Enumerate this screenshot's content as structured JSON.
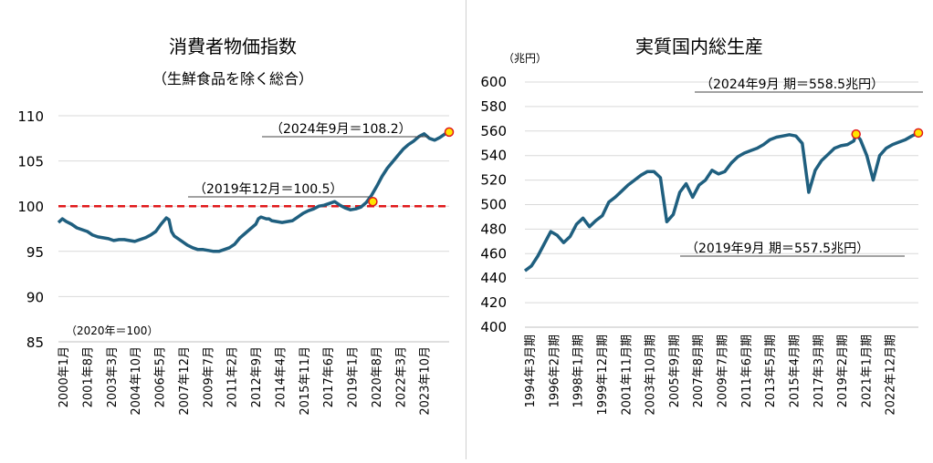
{
  "colors": {
    "line": "#1f5f7f",
    "reference_line": "#e0191b",
    "marker_fill": "#ffe600",
    "marker_stroke": "#e0191b"
  },
  "chart_data": [
    {
      "type": "line",
      "title": "消費者物価指数",
      "subtitle": "（生鮮食品を除く総合）",
      "unit_note": "（2020年＝100）",
      "ylim": [
        85,
        110
      ],
      "yticks": [
        "85",
        "90",
        "95",
        "100",
        "105",
        "110"
      ],
      "xticks": [
        "2000年1月",
        "2001年8月",
        "2003年3月",
        "2004年10月",
        "2006年5月",
        "2007年12月",
        "2009年7月",
        "2011年2月",
        "2012年9月",
        "2014年4月",
        "2015年11月",
        "2017年6月",
        "2019年1月",
        "2020年8月",
        "2022年3月",
        "2023年10月"
      ],
      "reference_line": 100,
      "annotations": [
        {
          "text": "（2024年9月＝108.2）",
          "x": 297,
          "y": 108.2
        },
        {
          "text": "（2019年12月＝100.5）",
          "x": 239,
          "y": 100.5
        }
      ],
      "series": [
        {
          "x": [
            0,
            3,
            6,
            10,
            14,
            18,
            22,
            26,
            30,
            34,
            38,
            42,
            46,
            50,
            54,
            58,
            62,
            66,
            70,
            74,
            78,
            82,
            84,
            86,
            88,
            90,
            92,
            94,
            98,
            102,
            106,
            110,
            114,
            118,
            122,
            126,
            130,
            134,
            138,
            142,
            146,
            150,
            152,
            154,
            156,
            158,
            160,
            162,
            166,
            170,
            174,
            178,
            182,
            186,
            190,
            194,
            198,
            202,
            206,
            210,
            214,
            218,
            222,
            226,
            230,
            234,
            238,
            242,
            246,
            250,
            254,
            258,
            262,
            266,
            270,
            274,
            278,
            282,
            286,
            290,
            294,
            297
          ],
          "values": [
            98.2,
            98.6,
            98.3,
            98.0,
            97.6,
            97.4,
            97.2,
            96.8,
            96.6,
            96.5,
            96.4,
            96.2,
            96.3,
            96.3,
            96.2,
            96.1,
            96.3,
            96.5,
            96.8,
            97.2,
            98.0,
            98.7,
            98.5,
            97.2,
            96.7,
            96.5,
            96.3,
            96.1,
            95.7,
            95.4,
            95.2,
            95.2,
            95.1,
            95.0,
            95.0,
            95.2,
            95.4,
            95.8,
            96.5,
            97.0,
            97.5,
            98.0,
            98.6,
            98.8,
            98.7,
            98.6,
            98.6,
            98.4,
            98.3,
            98.2,
            98.3,
            98.4,
            98.8,
            99.2,
            99.5,
            99.7,
            100.0,
            100.1,
            100.3,
            100.5,
            100.1,
            99.8,
            99.6,
            99.7,
            99.9,
            100.4,
            101.2,
            102.2,
            103.3,
            104.2,
            104.9,
            105.6,
            106.3,
            106.8,
            107.2,
            107.7,
            108.0,
            107.5,
            107.3,
            107.6,
            108.0,
            108.2
          ]
        }
      ]
    },
    {
      "type": "line",
      "title": "実質国内総生産",
      "unit_note": "（兆円）",
      "ylim": [
        400,
        600
      ],
      "yticks": [
        "400",
        "420",
        "440",
        "460",
        "480",
        "500",
        "520",
        "540",
        "560",
        "580",
        "600"
      ],
      "xticks": [
        "1994年3月期",
        "1996年2月期",
        "1998年1月期",
        "1999年12月期",
        "2001年11月期",
        "2003年10月期",
        "2005年9月期",
        "2007年8月期",
        "2009年7月期",
        "2011年6月期",
        "2013年5月期",
        "2015年4月期",
        "2017年3月期",
        "2019年2月期",
        "2021年1月期",
        "2022年12月期"
      ],
      "annotations": [
        {
          "text": "（2024年9月 期＝558.5兆円）",
          "x": 122,
          "y": 558.5
        },
        {
          "text": "（2019年9月 期＝557.5兆円）",
          "x": 102.67,
          "y": 557.5
        }
      ],
      "series": [
        {
          "x": [
            0,
            2,
            4,
            6,
            8,
            10,
            12,
            14,
            16,
            18,
            20,
            22,
            24,
            26,
            28,
            30,
            32,
            34,
            36,
            38,
            40,
            42,
            44,
            46,
            48,
            50,
            52,
            54,
            56,
            58,
            60,
            62,
            64,
            66,
            68,
            70,
            72,
            74,
            76,
            78,
            80,
            82,
            84,
            86,
            88,
            90,
            92,
            94,
            96,
            98,
            100,
            102,
            102.67,
            104,
            106,
            108,
            110,
            112,
            114,
            116,
            118,
            120,
            122
          ],
          "values": [
            446,
            450,
            458,
            468,
            478,
            475,
            469,
            474,
            484,
            489,
            482,
            487,
            491,
            502,
            506,
            511,
            516,
            520,
            524,
            527,
            527,
            522,
            486,
            492,
            510,
            517,
            506,
            516,
            520,
            528,
            525,
            527,
            534,
            539,
            542,
            544,
            546,
            549,
            553,
            555,
            556,
            557,
            556,
            550,
            510,
            528,
            536,
            541,
            546,
            548,
            549,
            552,
            557.5,
            553,
            540,
            520,
            540,
            546,
            549,
            551,
            553,
            556,
            558.5
          ]
        }
      ]
    }
  ]
}
